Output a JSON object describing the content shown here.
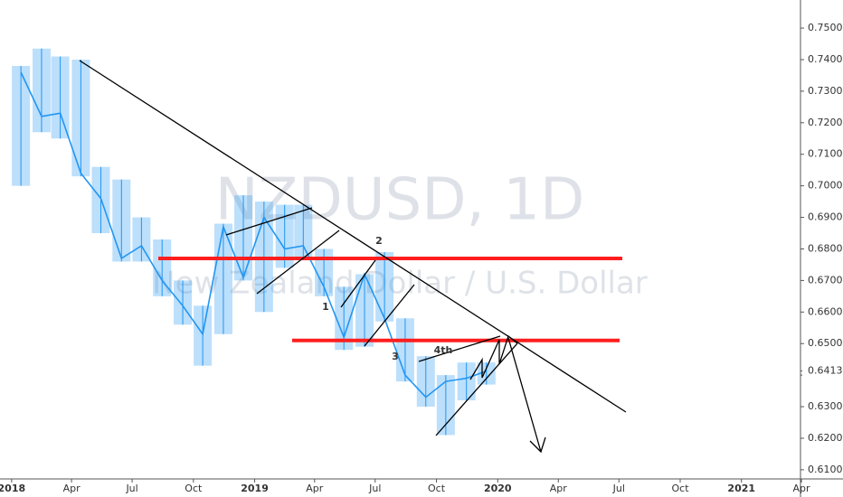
{
  "chart_data": {
    "type": "ohlc",
    "title": "NZDUSD, 1D",
    "subtitle": "New Zealand Dollar / U.S. Dollar",
    "color": "#2196f3",
    "x": [
      "2018-01",
      "2018-02",
      "2018-03",
      "2018-04",
      "2018-05",
      "2018-06",
      "2018-07",
      "2018-08",
      "2018-09",
      "2018-10",
      "2018-11",
      "2018-12",
      "2019-01",
      "2019-02",
      "2019-03",
      "2019-04",
      "2019-05",
      "2019-06",
      "2019-07",
      "2019-08",
      "2019-09",
      "2019-10",
      "2019-11",
      "2019-12"
    ],
    "high": [
      0.738,
      0.7435,
      0.741,
      0.74,
      0.706,
      0.702,
      0.69,
      0.683,
      0.67,
      0.662,
      0.688,
      0.697,
      0.695,
      0.694,
      0.694,
      0.68,
      0.668,
      0.672,
      0.679,
      0.658,
      0.646,
      0.64,
      0.644,
      0.644
    ],
    "low": [
      0.7,
      0.717,
      0.715,
      0.703,
      0.685,
      0.676,
      0.676,
      0.665,
      0.656,
      0.643,
      0.653,
      0.67,
      0.66,
      0.674,
      0.677,
      0.665,
      0.648,
      0.649,
      0.657,
      0.638,
      0.63,
      0.621,
      0.632,
      0.637
    ],
    "close": [
      0.736,
      0.722,
      0.723,
      0.704,
      0.696,
      0.677,
      0.681,
      0.67,
      0.662,
      0.653,
      0.687,
      0.671,
      0.69,
      0.68,
      0.681,
      0.668,
      0.652,
      0.672,
      0.658,
      0.64,
      0.633,
      0.638,
      0.639,
      0.6413
    ],
    "last_price": 0.64132,
    "levels": [
      0.677,
      0.651
    ],
    "level_color": "#ff1e1e",
    "annotations": [
      "1",
      "2",
      "3",
      "4th"
    ],
    "xlim": [
      "2017-12",
      "2021-04"
    ],
    "xticks": [
      {
        "value": "2018-01",
        "label": "2018"
      },
      {
        "value": "2018-04",
        "label": "Apr"
      },
      {
        "value": "2018-07",
        "label": "Jul"
      },
      {
        "value": "2018-10",
        "label": "Oct"
      },
      {
        "value": "2019-01",
        "label": "2019"
      },
      {
        "value": "2019-04",
        "label": "Apr"
      },
      {
        "value": "2019-07",
        "label": "Jul"
      },
      {
        "value": "2019-10",
        "label": "Oct"
      },
      {
        "value": "2020-01",
        "label": "2020"
      },
      {
        "value": "2020-04",
        "label": "Apr"
      },
      {
        "value": "2020-07",
        "label": "Jul"
      },
      {
        "value": "2020-10",
        "label": "Oct"
      },
      {
        "value": "2021-01",
        "label": "2021"
      },
      {
        "value": "2021-04",
        "label": "Apr"
      }
    ],
    "ylim": [
      0.6071,
      0.7589
    ],
    "yticks": [
      {
        "value": 0.61,
        "label": "0.61000"
      },
      {
        "value": 0.62,
        "label": "0.62000"
      },
      {
        "value": 0.63,
        "label": "0.63000"
      },
      {
        "value": 0.64,
        "label": "0.64000"
      },
      {
        "value": 0.65,
        "label": "0.65000"
      },
      {
        "value": 0.66,
        "label": "0.66000"
      },
      {
        "value": 0.67,
        "label": "0.67000"
      },
      {
        "value": 0.68,
        "label": "0.68000"
      },
      {
        "value": 0.69,
        "label": "0.69000"
      },
      {
        "value": 0.7,
        "label": "0.70000"
      },
      {
        "value": 0.71,
        "label": "0.71000"
      },
      {
        "value": 0.72,
        "label": "0.72000"
      },
      {
        "value": 0.73,
        "label": "0.73000"
      },
      {
        "value": 0.74,
        "label": "0.74000"
      },
      {
        "value": 0.75,
        "label": "0.75000"
      }
    ]
  }
}
